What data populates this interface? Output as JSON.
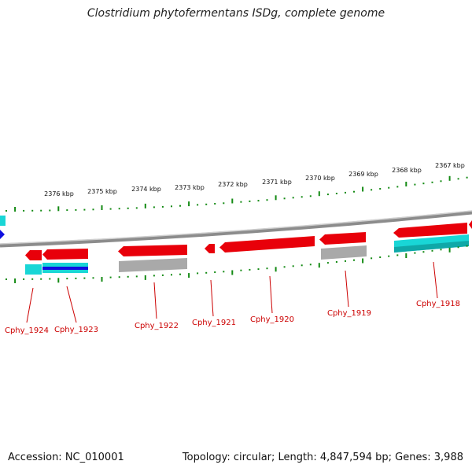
{
  "title": "Clostridium phytofermentans ISDg, complete genome",
  "accession": "Accession: NC_010001",
  "summary": "Topology: circular; Length: 4,847,594 bp; Genes: 3,988",
  "colors": {
    "gene_red": "#e8000a",
    "tick_green": "#138a13",
    "label_red": "#cc0000",
    "backbone": "#8c8c8c",
    "cyan": "#19d6d6",
    "grey": "#a9a9a9",
    "blue": "#1010e0"
  },
  "kbp_labels": [
    "2376 kbp",
    "2375 kbp",
    "2374 kbp",
    "2373 kbp",
    "2372 kbp",
    "2371 kbp",
    "2370 kbp",
    "2369 kbp",
    "2368 kbp",
    "2367 kbp"
  ],
  "genes": [
    {
      "name": "Cphy_1924",
      "strand": "minus"
    },
    {
      "name": "Cphy_1923",
      "strand": "minus"
    },
    {
      "name": "Cphy_1922",
      "strand": "minus"
    },
    {
      "name": "Cphy_1921",
      "strand": "minus"
    },
    {
      "name": "Cphy_1920",
      "strand": "minus"
    },
    {
      "name": "Cphy_1919",
      "strand": "minus"
    },
    {
      "name": "Cphy_1918",
      "strand": "minus"
    }
  ]
}
